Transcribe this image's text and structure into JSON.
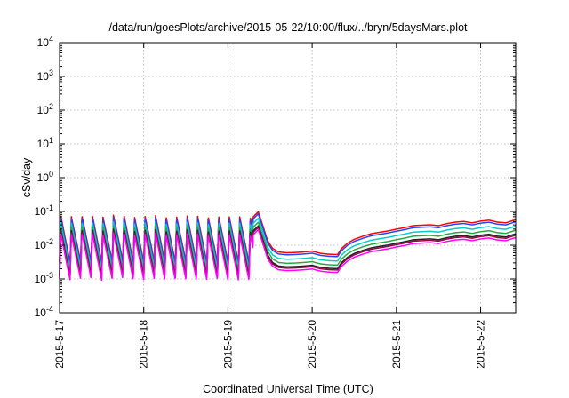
{
  "chart_data": {
    "type": "line",
    "title": "/data/run/goesPlots/archive/2015-05-22/10:00/flux/../bryn/5daysMars.plot",
    "xlabel": "Coordinated Universal Time (UTC)",
    "ylabel": "cSv/day",
    "y_scale": "log",
    "ylim": [
      0.0001,
      10000
    ],
    "xlim": [
      "2015-05-17 00:00",
      "2015-05-22 10:00"
    ],
    "grid": true,
    "legend": "none",
    "y_ticks": [
      {
        "base": "10",
        "exp": "-4"
      },
      {
        "base": "10",
        "exp": "-3"
      },
      {
        "base": "10",
        "exp": "-2"
      },
      {
        "base": "10",
        "exp": "-1"
      },
      {
        "base": "10",
        "exp": "0"
      },
      {
        "base": "10",
        "exp": "1"
      },
      {
        "base": "10",
        "exp": "2"
      },
      {
        "base": "10",
        "exp": "3"
      },
      {
        "base": "10",
        "exp": "4"
      }
    ],
    "x_ticks": [
      {
        "label": "2015-5-17",
        "day": 0
      },
      {
        "label": "2015-5-18",
        "day": 1
      },
      {
        "label": "2015-5-19",
        "day": 2
      },
      {
        "label": "2015-5-20",
        "day": 3
      },
      {
        "label": "2015-5-21",
        "day": 4
      },
      {
        "label": "2015-5-22",
        "day": 5
      }
    ],
    "x_days": [
      0.0,
      0.1,
      0.2,
      0.3,
      0.4,
      0.5,
      0.6,
      0.7,
      0.8,
      0.9,
      1.0,
      1.1,
      1.2,
      1.3,
      1.4,
      1.5,
      1.6,
      1.7,
      1.8,
      1.9,
      2.0,
      2.1,
      2.2,
      2.3,
      2.36,
      2.42,
      2.47,
      2.53,
      2.6,
      2.7,
      2.8,
      2.9,
      3.0,
      3.1,
      3.2,
      3.3,
      3.35,
      3.42,
      3.5,
      3.6,
      3.7,
      3.8,
      3.9,
      4.0,
      4.1,
      4.2,
      4.3,
      4.4,
      4.5,
      4.6,
      4.7,
      4.8,
      4.9,
      5.0,
      5.1,
      5.2,
      5.3,
      5.42
    ],
    "base_values": [
      0.065,
      0.06,
      0.062,
      0.068,
      0.065,
      0.06,
      0.065,
      0.07,
      0.066,
      0.06,
      0.063,
      0.067,
      0.064,
      0.06,
      0.062,
      0.066,
      0.064,
      0.06,
      0.061,
      0.063,
      0.062,
      0.06,
      0.06,
      0.06,
      0.085,
      0.03,
      0.012,
      0.007,
      0.0055,
      0.0052,
      0.0053,
      0.0055,
      0.0058,
      0.005,
      0.0047,
      0.0046,
      0.007,
      0.01,
      0.013,
      0.016,
      0.019,
      0.021,
      0.023,
      0.026,
      0.029,
      0.033,
      0.034,
      0.035,
      0.033,
      0.038,
      0.042,
      0.044,
      0.04,
      0.045,
      0.048,
      0.042,
      0.04,
      0.05
    ],
    "ripple": {
      "period_days": 0.125,
      "until_day": 2.3,
      "depth_factor": 0.045
    },
    "series": [
      {
        "color": "#ff0000",
        "factor": 1.15
      },
      {
        "color": "#2244ff",
        "factor": 1.0
      },
      {
        "color": "#00cccc",
        "factor": 0.74
      },
      {
        "color": "#22aa44",
        "factor": 0.56
      },
      {
        "color": "#222222",
        "factor": 0.44
      },
      {
        "color": "#990044",
        "factor": 0.4
      },
      {
        "color": "#ff00ff",
        "factor": 0.34
      }
    ]
  }
}
